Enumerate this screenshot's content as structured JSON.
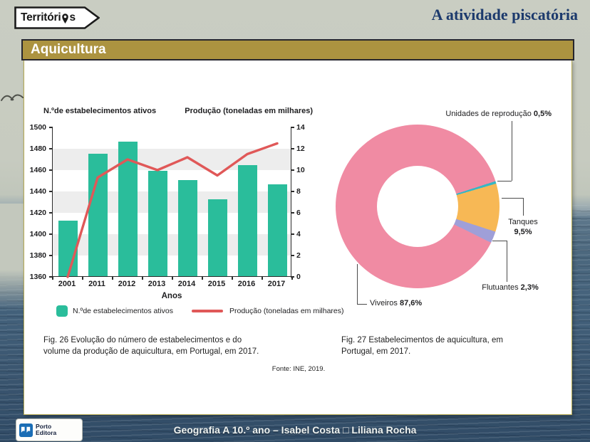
{
  "header": {
    "brand_prefix": "Territóri",
    "brand_suffix": "s",
    "title": "A atividade piscatória"
  },
  "title_bar": {
    "label": "Aquicultura"
  },
  "colors": {
    "accent_gold": "#ac9340",
    "heading_navy": "#1c3a6d",
    "bar_teal": "#2abd9b",
    "line_red": "#e05858",
    "donut_pink": "#f08ba3",
    "donut_orange": "#f7b855",
    "donut_purple": "#9f9fd8",
    "donut_cyan": "#35b7c5",
    "publisher_blue": "#1a6db5"
  },
  "chart_data": [
    {
      "type": "combo-bar-line",
      "title": "Fig. 26  Evolução do número de estabelecimentos e do\nvolume da produção de aquicultura, em Portugal, em 2017.",
      "categories": [
        "2001",
        "2011",
        "2012",
        "2013",
        "2014",
        "2015",
        "2016",
        "2017"
      ],
      "xlabel": "Anos",
      "left_axis": {
        "label": "N.ºde estabelecimentos ativos",
        "min": 1360,
        "max": 1500,
        "step": 20
      },
      "right_axis": {
        "label": "Produção (toneladas em milhares)",
        "min": 0,
        "max": 14,
        "step": 2
      },
      "series": [
        {
          "name": "N.ºde estabelecimentos ativos",
          "kind": "bar",
          "axis": "left",
          "color": "#2abd9b",
          "values": [
            1412,
            1475,
            1486,
            1459,
            1450,
            1432,
            1464,
            1446
          ]
        },
        {
          "name": "Produção (toneladas em milhares)",
          "kind": "line",
          "axis": "right",
          "color": "#e05858",
          "values": [
            0,
            9.3,
            11,
            10,
            11.2,
            9.5,
            11.5,
            12.5
          ]
        }
      ],
      "grid": "alternating-horizontal-bands",
      "legend_position": "bottom"
    },
    {
      "type": "pie",
      "subtype": "donut",
      "title": "Fig. 27  Estabelecimentos de aquicultura, em\nPortugal, em 2017.",
      "slices": [
        {
          "label": "Viveiros",
          "value": 87.6,
          "display": "87,6%",
          "color": "#f08ba3"
        },
        {
          "label": "Tanques",
          "value": 9.5,
          "display": "9,5%",
          "color": "#f7b855"
        },
        {
          "label": "Flutuantes",
          "value": 2.3,
          "display": "2,3%",
          "color": "#9f9fd8"
        },
        {
          "label": "Unidades de reprodução",
          "value": 0.5,
          "display": "0,5%",
          "color": "#35b7c5"
        }
      ],
      "start_angle_deg": 72,
      "draw_order": [
        3,
        1,
        2,
        0
      ],
      "legend_position": "callout-labels"
    }
  ],
  "fonte": "Fonte: INE, 2019.",
  "footer": {
    "credit": "Geografia A 10.º ano – Isabel Costa □ Liliana Rocha",
    "publisher": [
      "Porto",
      "Editora"
    ]
  }
}
